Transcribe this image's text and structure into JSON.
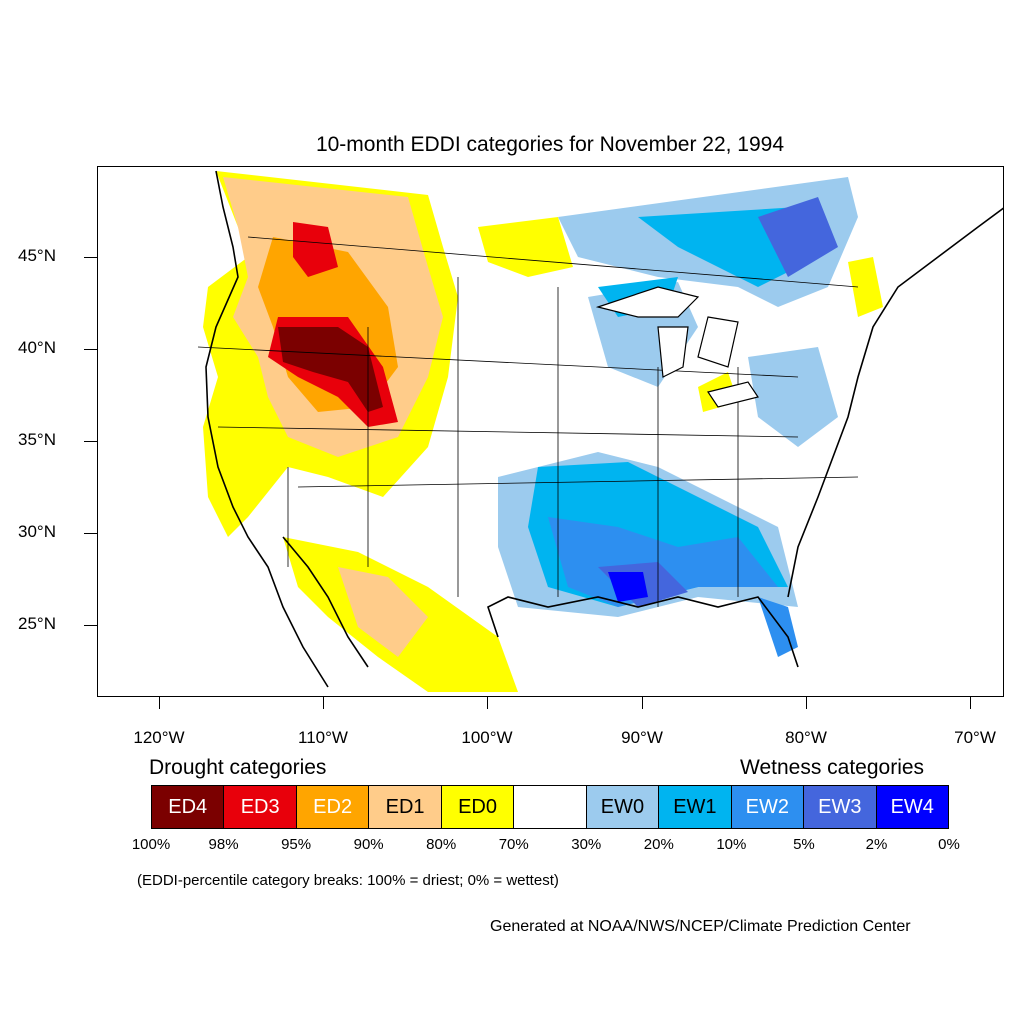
{
  "title": "10-month EDDI categories for November 22, 1994",
  "axes": {
    "lat_labels": [
      "45°N",
      "40°N",
      "35°N",
      "30°N",
      "25°N"
    ],
    "lon_labels": [
      "120°W",
      "110°W",
      "100°W",
      "90°W",
      "80°W",
      "70°W"
    ]
  },
  "legend": {
    "drought_heading": "Drought categories",
    "wetness_heading": "Wetness categories",
    "categories": [
      {
        "label": "ED4",
        "color": "#7b0000",
        "text_color": "#ffffff"
      },
      {
        "label": "ED3",
        "color": "#e8000b",
        "text_color": "#ffffff"
      },
      {
        "label": "ED2",
        "color": "#ffa500",
        "text_color": "#ffffff"
      },
      {
        "label": "ED1",
        "color": "#ffcc8a",
        "text_color": "#000000"
      },
      {
        "label": "ED0",
        "color": "#ffff00",
        "text_color": "#000000"
      },
      {
        "label": "",
        "color": "#ffffff",
        "text_color": "#000000"
      },
      {
        "label": "EW0",
        "color": "#9ccbee",
        "text_color": "#000000"
      },
      {
        "label": "EW1",
        "color": "#00b4f0",
        "text_color": "#000000"
      },
      {
        "label": "EW2",
        "color": "#2d8ff0",
        "text_color": "#ffffff"
      },
      {
        "label": "EW3",
        "color": "#4466dd",
        "text_color": "#ffffff"
      },
      {
        "label": "EW4",
        "color": "#0000ff",
        "text_color": "#ffffff"
      }
    ],
    "breaks": [
      "100%",
      "98%",
      "95%",
      "90%",
      "80%",
      "70%",
      "30%",
      "20%",
      "10%",
      "5%",
      "2%",
      "0%"
    ]
  },
  "note": "(EDDI-percentile category breaks: 100% = driest; 0% = wettest)",
  "credit": "Generated at NOAA/NWS/NCEP/Climate Prediction Center"
}
